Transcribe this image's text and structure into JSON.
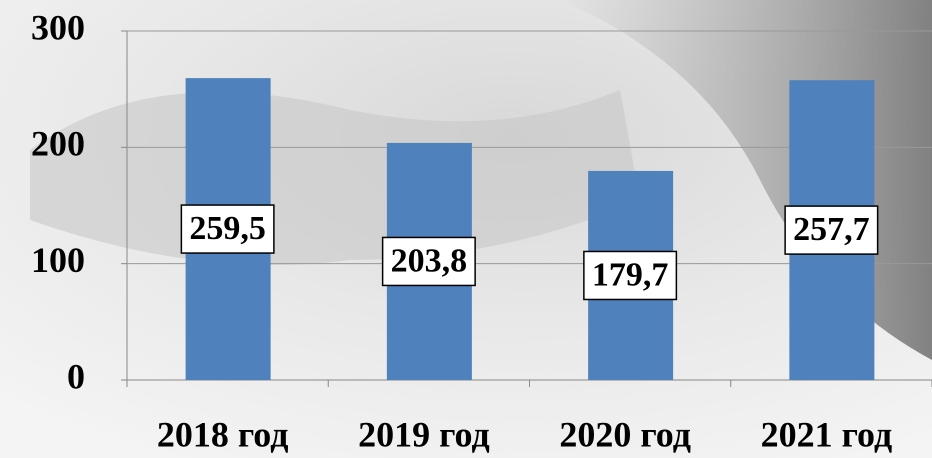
{
  "chart_data": {
    "type": "bar",
    "categories": [
      "2018 год",
      "2019 год",
      "2020 год",
      "2021 год"
    ],
    "values": [
      259.5,
      203.8,
      179.7,
      257.7
    ],
    "value_labels": [
      "259,5",
      "203,8",
      "179,7",
      "257,7"
    ],
    "color": "#4f81bd",
    "ylim": [
      0,
      300
    ],
    "yticks": [
      0,
      100,
      200,
      300
    ],
    "grid": true
  }
}
